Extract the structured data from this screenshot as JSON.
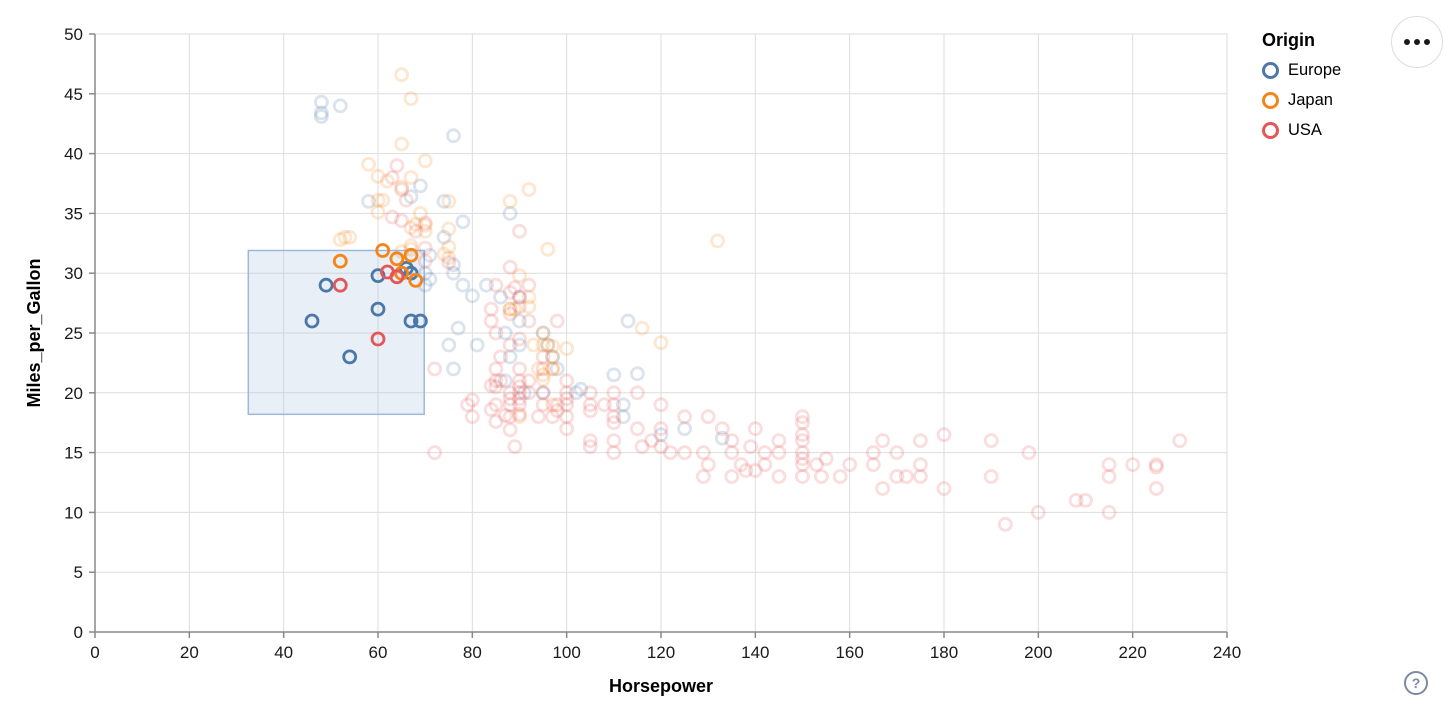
{
  "help_button": {
    "label": "?"
  },
  "menu_button": {
    "icon": "ellipsis"
  },
  "chart_data": {
    "type": "scatter",
    "title": "",
    "xlabel": "Horsepower",
    "ylabel": "Miles_per_Gallon",
    "xlim": [
      0,
      240
    ],
    "ylim": [
      0,
      50
    ],
    "xticks": [
      0,
      20,
      40,
      60,
      80,
      100,
      120,
      140,
      160,
      180,
      200,
      220,
      240
    ],
    "yticks": [
      0,
      5,
      10,
      15,
      20,
      25,
      30,
      35,
      40,
      45,
      50
    ],
    "grid": true,
    "legend": {
      "title": "Origin",
      "position": "top-right",
      "entries": [
        {
          "label": "Europe",
          "color": "#4c78a8"
        },
        {
          "label": "Japan",
          "color": "#f58518"
        },
        {
          "label": "USA",
          "color": "#e45756"
        }
      ]
    },
    "brush": {
      "x": [
        32.5,
        69.8
      ],
      "y": [
        18.2,
        31.9
      ],
      "fill": "#a3bfe0",
      "fill_opacity": 0.25,
      "stroke": "#9db8dd"
    },
    "point_style": {
      "radius": 6,
      "stroke_width": 2.8,
      "unselected_opacity": 0.2,
      "selected_opacity": 1
    },
    "series": [
      {
        "name": "Europe",
        "color": "#4c78a8",
        "selected": [
          [
            46,
            26
          ],
          [
            49,
            29
          ],
          [
            54,
            23
          ],
          [
            60,
            27
          ],
          [
            60,
            29.8
          ],
          [
            66,
            30.4
          ],
          [
            67,
            30
          ],
          [
            67,
            26
          ],
          [
            69,
            26
          ]
        ],
        "points": [
          [
            48,
            43.1
          ],
          [
            48,
            44.3
          ],
          [
            48,
            43.4
          ],
          [
            52,
            44
          ],
          [
            76,
            41.5
          ],
          [
            69,
            37.3
          ],
          [
            67,
            36.4
          ],
          [
            88,
            35
          ],
          [
            74,
            36
          ],
          [
            78,
            34.3
          ],
          [
            74,
            33
          ],
          [
            71,
            31.5
          ],
          [
            58,
            36
          ],
          [
            76,
            30.7
          ],
          [
            80,
            28.1
          ],
          [
            70,
            30
          ],
          [
            76,
            30
          ],
          [
            77,
            25.4
          ],
          [
            90,
            28
          ],
          [
            86,
            28
          ],
          [
            83,
            29
          ],
          [
            78,
            29
          ],
          [
            70,
            29
          ],
          [
            71,
            29.5
          ],
          [
            90,
            26
          ],
          [
            113,
            26
          ],
          [
            90,
            24
          ],
          [
            95,
            25
          ],
          [
            87,
            25
          ],
          [
            96,
            24
          ],
          [
            75,
            24
          ],
          [
            81,
            24
          ],
          [
            97,
            23
          ],
          [
            88,
            23
          ],
          [
            95,
            20
          ],
          [
            102,
            20
          ],
          [
            103,
            20.3
          ],
          [
            110,
            21.5
          ],
          [
            115,
            21.6
          ],
          [
            98,
            22
          ],
          [
            112,
            19
          ],
          [
            112,
            18
          ],
          [
            91,
            20
          ],
          [
            87,
            21
          ],
          [
            120,
            16.5
          ],
          [
            125,
            17
          ],
          [
            133,
            16.2
          ],
          [
            76,
            22
          ]
        ]
      },
      {
        "name": "Japan",
        "color": "#f58518",
        "selected": [
          [
            52,
            31
          ],
          [
            61,
            31.9
          ],
          [
            64,
            31.2
          ],
          [
            67,
            31.5
          ],
          [
            65,
            30
          ],
          [
            68,
            29.4
          ]
        ],
        "points": [
          [
            65,
            46.6
          ],
          [
            67,
            44.6
          ],
          [
            65,
            40.8
          ],
          [
            70,
            39.4
          ],
          [
            58,
            39.1
          ],
          [
            60,
            38.1
          ],
          [
            67,
            38
          ],
          [
            65,
            37.2
          ],
          [
            62,
            37.7
          ],
          [
            60,
            36.1
          ],
          [
            61,
            36.1
          ],
          [
            88,
            36
          ],
          [
            75,
            36
          ],
          [
            96,
            32
          ],
          [
            75,
            33.7
          ],
          [
            70,
            34
          ],
          [
            68,
            34.1
          ],
          [
            60,
            35.1
          ],
          [
            67,
            33.8
          ],
          [
            67,
            32.3
          ],
          [
            65,
            31.8
          ],
          [
            92,
            37
          ],
          [
            75,
            32.2
          ],
          [
            70,
            33.5
          ],
          [
            53,
            33
          ],
          [
            54,
            33
          ],
          [
            67,
            32
          ],
          [
            75,
            31.3
          ],
          [
            74,
            31.6
          ],
          [
            69,
            35
          ],
          [
            52,
            32.8
          ],
          [
            88,
            27
          ],
          [
            88,
            27
          ],
          [
            92,
            28
          ],
          [
            92,
            27.2
          ],
          [
            97,
            23.9
          ],
          [
            95,
            24
          ],
          [
            95,
            25
          ],
          [
            96,
            24
          ],
          [
            95,
            21.5
          ],
          [
            95,
            21.1
          ],
          [
            97,
            22
          ],
          [
            97,
            22
          ],
          [
            90,
            29.8
          ],
          [
            116,
            25.4
          ],
          [
            120,
            24.2
          ],
          [
            100,
            23.7
          ],
          [
            132,
            32.7
          ],
          [
            97,
            19
          ],
          [
            90,
            18
          ],
          [
            94,
            22
          ],
          [
            97,
            23
          ],
          [
            89,
            27
          ],
          [
            93,
            24
          ]
        ]
      },
      {
        "name": "USA",
        "color": "#e45756",
        "selected": [
          [
            52,
            29
          ],
          [
            62,
            30.1
          ],
          [
            64,
            29.7
          ],
          [
            60,
            24.5
          ]
        ],
        "points": [
          [
            63,
            38
          ],
          [
            64,
            39
          ],
          [
            65,
            37
          ],
          [
            65,
            34.4
          ],
          [
            66,
            36.1
          ],
          [
            70,
            34.2
          ],
          [
            70,
            32.1
          ],
          [
            68,
            33.5
          ],
          [
            63,
            34.7
          ],
          [
            75,
            30.9
          ],
          [
            70,
            31
          ],
          [
            72,
            22
          ],
          [
            86,
            23
          ],
          [
            90,
            28
          ],
          [
            85,
            25
          ],
          [
            88,
            24
          ],
          [
            90,
            24.5
          ],
          [
            92,
            29
          ],
          [
            84,
            26
          ],
          [
            88,
            30.5
          ],
          [
            89,
            28.8
          ],
          [
            88,
            28.4
          ],
          [
            85,
            29
          ],
          [
            90,
            27.2
          ],
          [
            90,
            33.5
          ],
          [
            88,
            26.6
          ],
          [
            92,
            26
          ],
          [
            98,
            26
          ],
          [
            84,
            27
          ],
          [
            97,
            18
          ],
          [
            85,
            21
          ],
          [
            88,
            19
          ],
          [
            90,
            21
          ],
          [
            100,
            19
          ],
          [
            100,
            17
          ],
          [
            88,
            19.5
          ],
          [
            100,
            18
          ],
          [
            110,
            18
          ],
          [
            100,
            19.5
          ],
          [
            88,
            18
          ],
          [
            95,
            22
          ],
          [
            95,
            23
          ],
          [
            90,
            20
          ],
          [
            86,
            21
          ],
          [
            85,
            20.5
          ],
          [
            87,
            18.1
          ],
          [
            80,
            19.4
          ],
          [
            84,
            20.6
          ],
          [
            84,
            18.6
          ],
          [
            85,
            17.6
          ],
          [
            88,
            16.9
          ],
          [
            89,
            15.5
          ],
          [
            98,
            18.5
          ],
          [
            92,
            20
          ],
          [
            94,
            18
          ],
          [
            90,
            19
          ],
          [
            95,
            20
          ],
          [
            85,
            22
          ],
          [
            79,
            19
          ],
          [
            80,
            18
          ],
          [
            90,
            18.2
          ],
          [
            90,
            19.5
          ],
          [
            90,
            20.5
          ],
          [
            100,
            20
          ],
          [
            100,
            21
          ],
          [
            95,
            19
          ],
          [
            90,
            22
          ],
          [
            88,
            20
          ],
          [
            85,
            19
          ],
          [
            92,
            21
          ],
          [
            98,
            19
          ],
          [
            105,
            19
          ],
          [
            110,
            16
          ],
          [
            115,
            17
          ],
          [
            120,
            17
          ],
          [
            105,
            16
          ],
          [
            105,
            20
          ],
          [
            108,
            19
          ],
          [
            110,
            17.5
          ],
          [
            105,
            18.5
          ],
          [
            110,
            20
          ],
          [
            115,
            20
          ],
          [
            110,
            19
          ],
          [
            110,
            15
          ],
          [
            105,
            15.5
          ],
          [
            130,
            18
          ],
          [
            140,
            17
          ],
          [
            120,
            19
          ],
          [
            125,
            18
          ],
          [
            116,
            15.5
          ],
          [
            120,
            15.5
          ],
          [
            125,
            15
          ],
          [
            118,
            16
          ],
          [
            122,
            15
          ],
          [
            129,
            15
          ],
          [
            135,
            16
          ],
          [
            130,
            14
          ],
          [
            138,
            13.5
          ],
          [
            135,
            13
          ],
          [
            137,
            14
          ],
          [
            129,
            13
          ],
          [
            139,
            15.5
          ],
          [
            142,
            15
          ],
          [
            145,
            15
          ],
          [
            140,
            13.5
          ],
          [
            145,
            13
          ],
          [
            142,
            14
          ],
          [
            135,
            15
          ],
          [
            145,
            16
          ],
          [
            133,
            17
          ],
          [
            150,
            18
          ],
          [
            150,
            16
          ],
          [
            150,
            15
          ],
          [
            150,
            14
          ],
          [
            150,
            14.5
          ],
          [
            150,
            13
          ],
          [
            150,
            17.5
          ],
          [
            150,
            16.5
          ],
          [
            153,
            14
          ],
          [
            155,
            14.5
          ],
          [
            154,
            13
          ],
          [
            158,
            13
          ],
          [
            160,
            14
          ],
          [
            165,
            15
          ],
          [
            165,
            14
          ],
          [
            170,
            15
          ],
          [
            170,
            13
          ],
          [
            175,
            14
          ],
          [
            175,
            13
          ],
          [
            167,
            16
          ],
          [
            180,
            12
          ],
          [
            180,
            16.5
          ],
          [
            175,
            16
          ],
          [
            167,
            12
          ],
          [
            172,
            13
          ],
          [
            190,
            16
          ],
          [
            190,
            13
          ],
          [
            193,
            9
          ],
          [
            198,
            15
          ],
          [
            200,
            10
          ],
          [
            208,
            11
          ],
          [
            210,
            11
          ],
          [
            215,
            10
          ],
          [
            215,
            13
          ],
          [
            215,
            14
          ],
          [
            220,
            14
          ],
          [
            225,
            14
          ],
          [
            225,
            13.8
          ],
          [
            225,
            12
          ],
          [
            230,
            16
          ],
          [
            72,
            15
          ]
        ]
      }
    ]
  }
}
